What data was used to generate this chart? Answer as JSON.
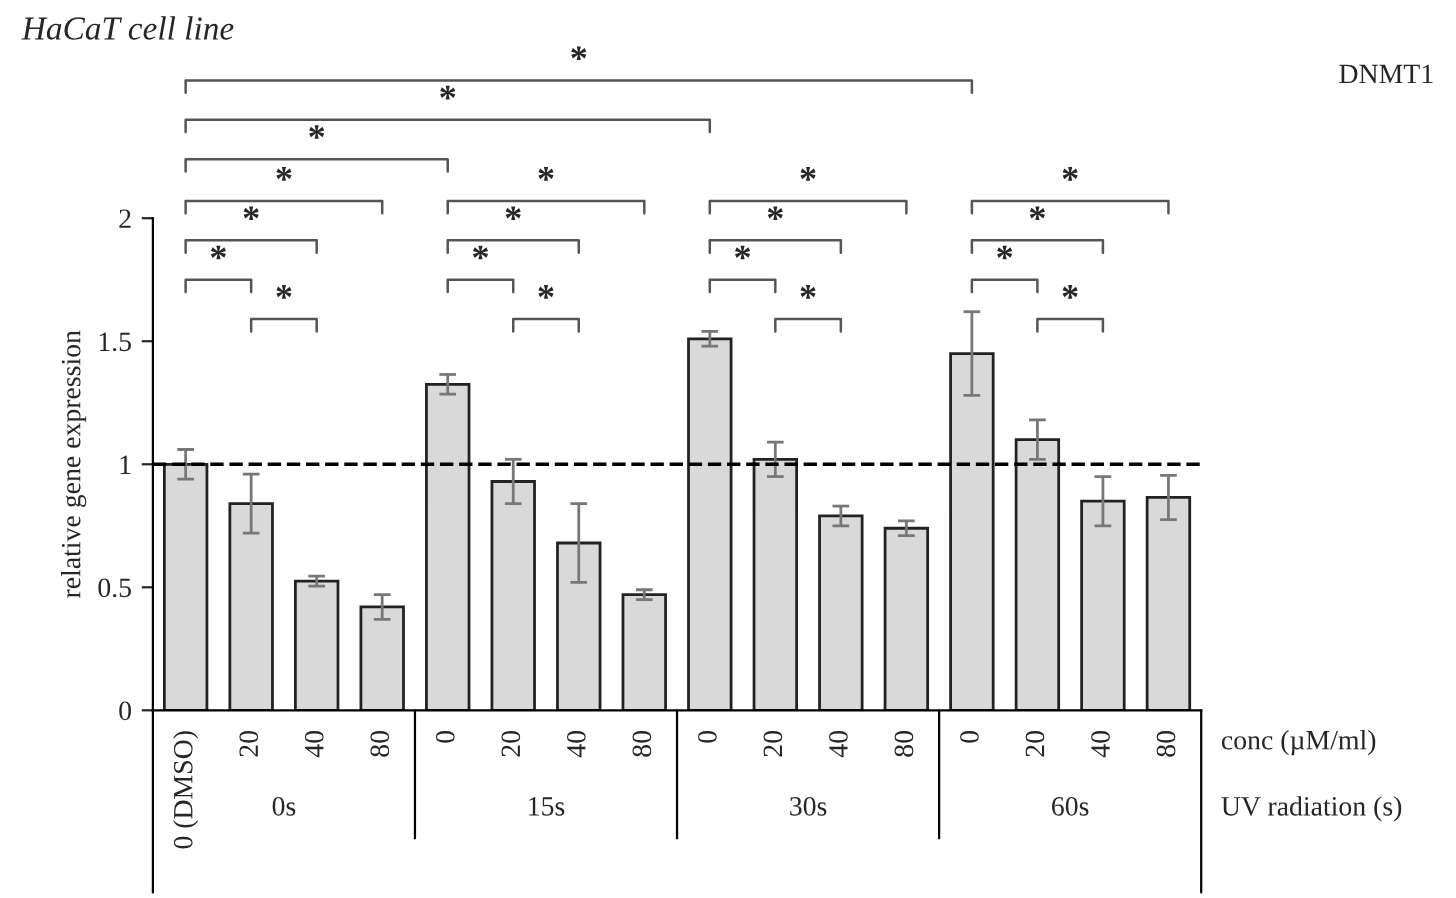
{
  "chart_data": {
    "type": "bar",
    "title": "HaCaT cell line",
    "subtitle": "DNMT1",
    "ylabel": "relative gene expression",
    "xlabel": "conc (µM/ml)",
    "categories": [
      "0 (DMSO)",
      "20",
      "40",
      "80",
      "0",
      "20",
      "40",
      "80",
      "0",
      "20",
      "40",
      "80",
      "0",
      "20",
      "40",
      "80"
    ],
    "values": [
      1.0,
      0.84,
      0.525,
      0.42,
      1.325,
      0.93,
      0.68,
      0.47,
      1.51,
      1.02,
      0.79,
      0.74,
      1.45,
      1.1,
      0.85,
      0.865
    ],
    "errors": [
      0.06,
      0.12,
      0.02,
      0.05,
      0.04,
      0.09,
      0.16,
      0.02,
      0.03,
      0.07,
      0.04,
      0.03,
      0.17,
      0.08,
      0.1,
      0.09
    ],
    "color": "#d9d9d9",
    "ylim": [
      0,
      2
    ],
    "yticks": [
      0,
      0.5,
      1,
      1.5,
      2
    ],
    "ref_lines": [
      {
        "axis": "y",
        "value": 1,
        "line_style": "dashed",
        "color": "#000000"
      }
    ],
    "annotations": [
      "*",
      "*",
      "*",
      "*",
      "*",
      "*",
      "*",
      "*",
      "*",
      "*",
      "*",
      "*",
      "*",
      "*",
      "*",
      "*",
      "*",
      "*",
      "*",
      "0s",
      "15s",
      "30s",
      "60s",
      "UV radiation (s)"
    ],
    "grid": false,
    "legend": false
  }
}
